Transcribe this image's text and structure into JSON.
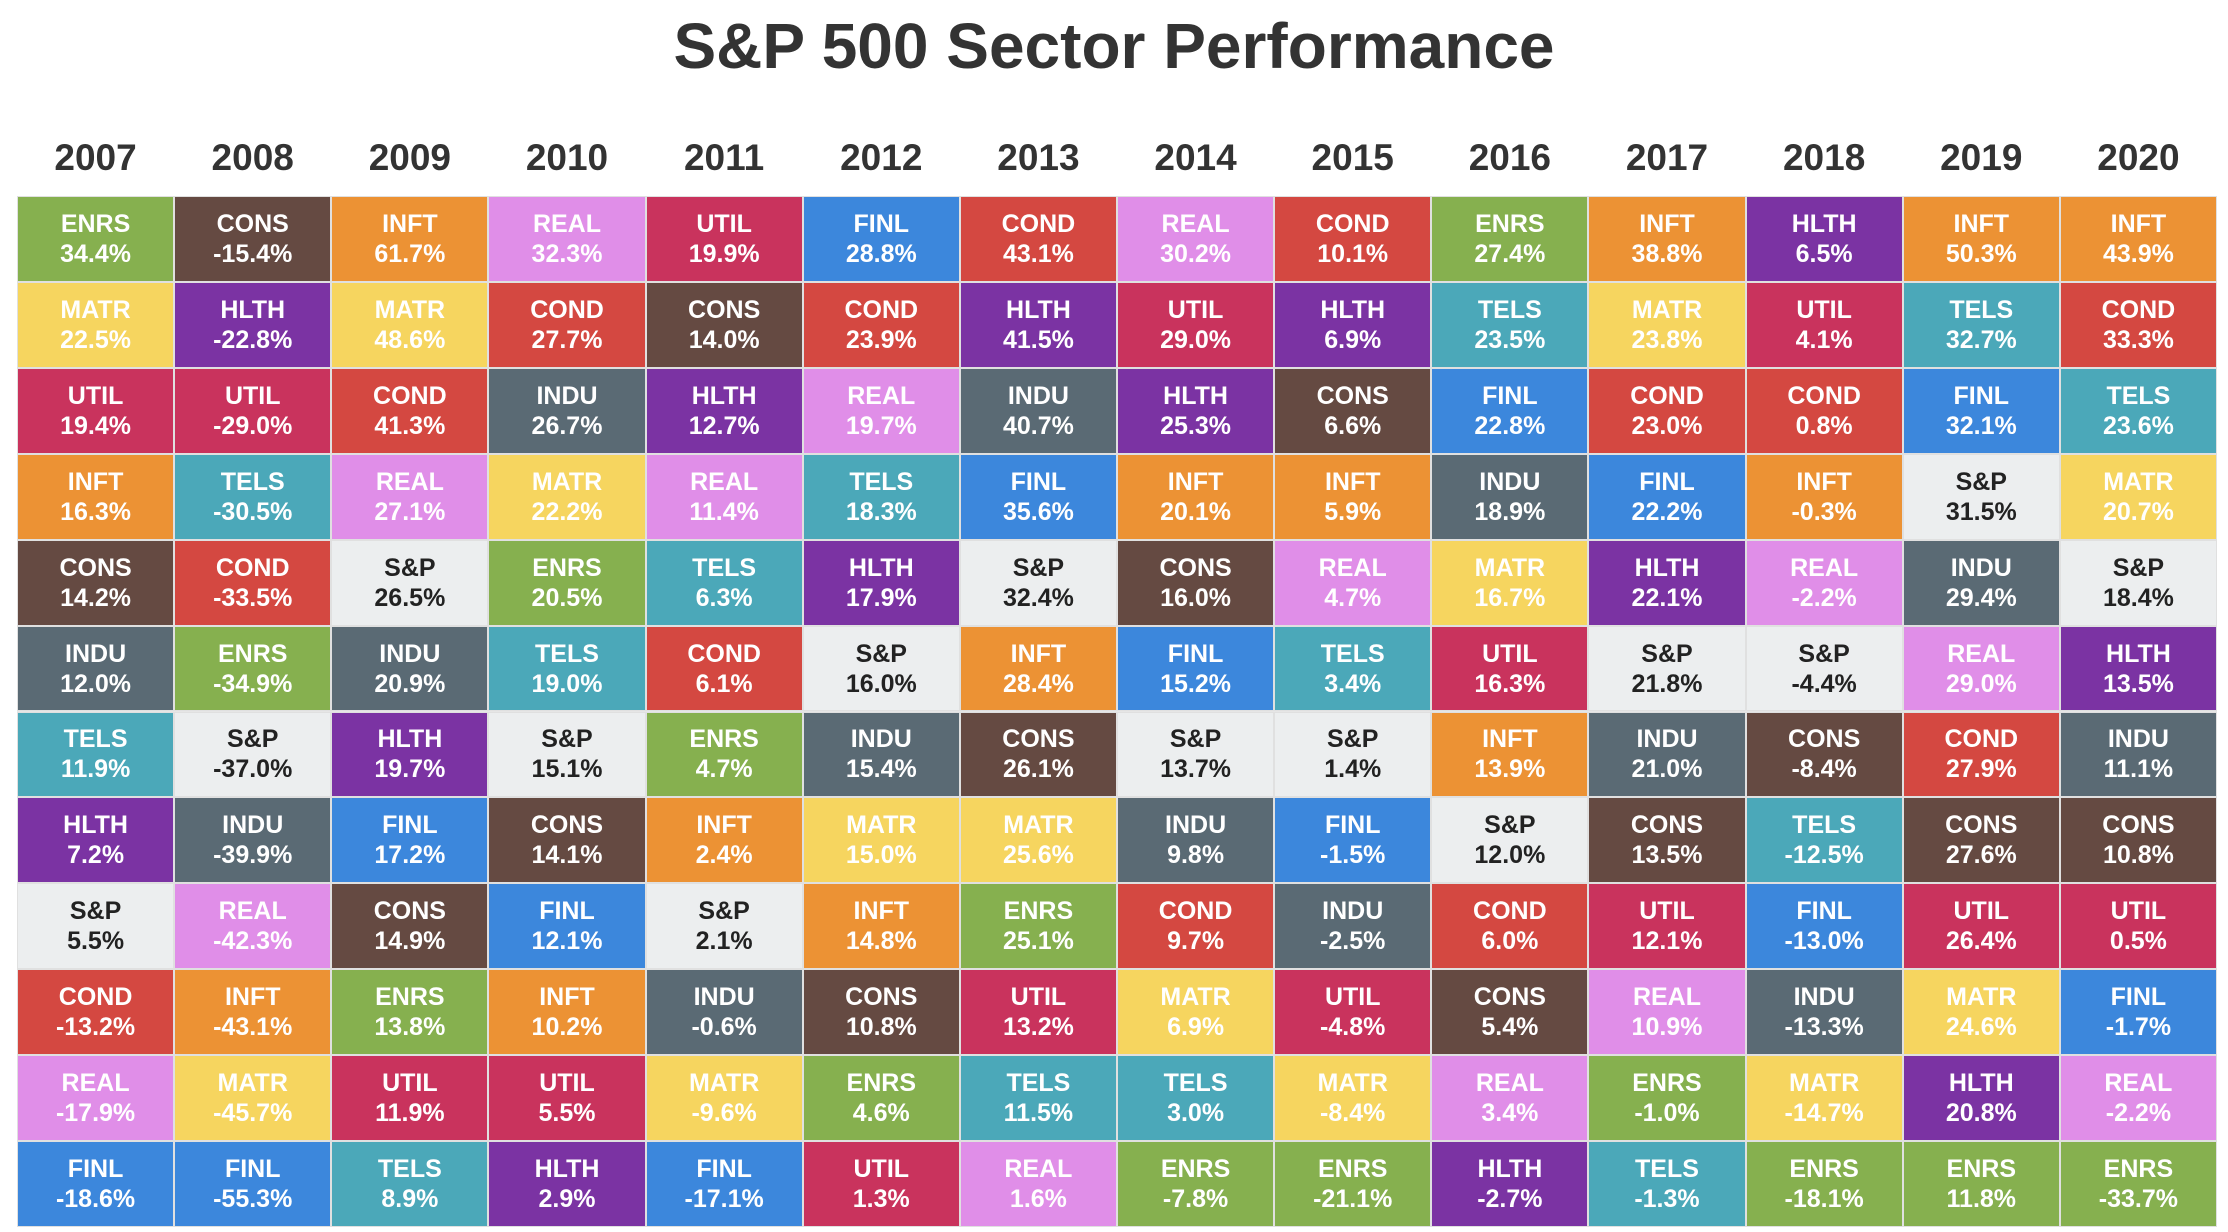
{
  "chart_data": {
    "type": "table",
    "title": "S&P 500 Sector Performance",
    "years": [
      "2007",
      "2008",
      "2009",
      "2010",
      "2011",
      "2012",
      "2013",
      "2014",
      "2015",
      "2016",
      "2017",
      "2018",
      "2019",
      "2020"
    ],
    "sector_colors": {
      "ENRS": "#86b04f",
      "CONS": "#654a42",
      "INFT": "#ec9234",
      "REAL": "#e08ee8",
      "UTIL": "#c9335d",
      "FINL": "#3c87dc",
      "COND": "#d44841",
      "HLTH": "#7b33a3",
      "MATR": "#f6d55f",
      "INDU": "#5a6a74",
      "TELS": "#4ba8b9",
      "S&P": "#eceeef"
    },
    "dark_text_sectors": [
      "S&P"
    ],
    "columns": [
      {
        "year": "2007",
        "cells": [
          {
            "s": "ENRS",
            "v": "34.4%"
          },
          {
            "s": "MATR",
            "v": "22.5%"
          },
          {
            "s": "UTIL",
            "v": "19.4%"
          },
          {
            "s": "INFT",
            "v": "16.3%"
          },
          {
            "s": "CONS",
            "v": "14.2%"
          },
          {
            "s": "INDU",
            "v": "12.0%"
          },
          {
            "s": "TELS",
            "v": "11.9%"
          },
          {
            "s": "HLTH",
            "v": "7.2%"
          },
          {
            "s": "S&P",
            "v": "5.5%"
          },
          {
            "s": "COND",
            "v": "-13.2%"
          },
          {
            "s": "REAL",
            "v": "-17.9%"
          },
          {
            "s": "FINL",
            "v": "-18.6%"
          }
        ]
      },
      {
        "year": "2008",
        "cells": [
          {
            "s": "CONS",
            "v": "-15.4%"
          },
          {
            "s": "HLTH",
            "v": "-22.8%"
          },
          {
            "s": "UTIL",
            "v": "-29.0%"
          },
          {
            "s": "TELS",
            "v": "-30.5%"
          },
          {
            "s": "COND",
            "v": "-33.5%"
          },
          {
            "s": "ENRS",
            "v": "-34.9%"
          },
          {
            "s": "S&P",
            "v": "-37.0%"
          },
          {
            "s": "INDU",
            "v": "-39.9%"
          },
          {
            "s": "REAL",
            "v": "-42.3%"
          },
          {
            "s": "INFT",
            "v": "-43.1%"
          },
          {
            "s": "MATR",
            "v": "-45.7%"
          },
          {
            "s": "FINL",
            "v": "-55.3%"
          }
        ]
      },
      {
        "year": "2009",
        "cells": [
          {
            "s": "INFT",
            "v": "61.7%"
          },
          {
            "s": "MATR",
            "v": "48.6%"
          },
          {
            "s": "COND",
            "v": "41.3%"
          },
          {
            "s": "REAL",
            "v": "27.1%"
          },
          {
            "s": "S&P",
            "v": "26.5%"
          },
          {
            "s": "INDU",
            "v": "20.9%"
          },
          {
            "s": "HLTH",
            "v": "19.7%"
          },
          {
            "s": "FINL",
            "v": "17.2%"
          },
          {
            "s": "CONS",
            "v": "14.9%"
          },
          {
            "s": "ENRS",
            "v": "13.8%"
          },
          {
            "s": "UTIL",
            "v": "11.9%"
          },
          {
            "s": "TELS",
            "v": "8.9%"
          }
        ]
      },
      {
        "year": "2010",
        "cells": [
          {
            "s": "REAL",
            "v": "32.3%"
          },
          {
            "s": "COND",
            "v": "27.7%"
          },
          {
            "s": "INDU",
            "v": "26.7%"
          },
          {
            "s": "MATR",
            "v": "22.2%"
          },
          {
            "s": "ENRS",
            "v": "20.5%"
          },
          {
            "s": "TELS",
            "v": "19.0%"
          },
          {
            "s": "S&P",
            "v": "15.1%"
          },
          {
            "s": "CONS",
            "v": "14.1%"
          },
          {
            "s": "FINL",
            "v": "12.1%"
          },
          {
            "s": "INFT",
            "v": "10.2%"
          },
          {
            "s": "UTIL",
            "v": "5.5%"
          },
          {
            "s": "HLTH",
            "v": "2.9%"
          }
        ]
      },
      {
        "year": "2011",
        "cells": [
          {
            "s": "UTIL",
            "v": "19.9%"
          },
          {
            "s": "CONS",
            "v": "14.0%"
          },
          {
            "s": "HLTH",
            "v": "12.7%"
          },
          {
            "s": "REAL",
            "v": "11.4%"
          },
          {
            "s": "TELS",
            "v": "6.3%"
          },
          {
            "s": "COND",
            "v": "6.1%"
          },
          {
            "s": "ENRS",
            "v": "4.7%"
          },
          {
            "s": "INFT",
            "v": "2.4%"
          },
          {
            "s": "S&P",
            "v": "2.1%"
          },
          {
            "s": "INDU",
            "v": "-0.6%"
          },
          {
            "s": "MATR",
            "v": "-9.6%"
          },
          {
            "s": "FINL",
            "v": "-17.1%"
          }
        ]
      },
      {
        "year": "2012",
        "cells": [
          {
            "s": "FINL",
            "v": "28.8%"
          },
          {
            "s": "COND",
            "v": "23.9%"
          },
          {
            "s": "REAL",
            "v": "19.7%"
          },
          {
            "s": "TELS",
            "v": "18.3%"
          },
          {
            "s": "HLTH",
            "v": "17.9%"
          },
          {
            "s": "S&P",
            "v": "16.0%"
          },
          {
            "s": "INDU",
            "v": "15.4%"
          },
          {
            "s": "MATR",
            "v": "15.0%"
          },
          {
            "s": "INFT",
            "v": "14.8%"
          },
          {
            "s": "CONS",
            "v": "10.8%"
          },
          {
            "s": "ENRS",
            "v": "4.6%"
          },
          {
            "s": "UTIL",
            "v": "1.3%"
          }
        ]
      },
      {
        "year": "2013",
        "cells": [
          {
            "s": "COND",
            "v": "43.1%"
          },
          {
            "s": "HLTH",
            "v": "41.5%"
          },
          {
            "s": "INDU",
            "v": "40.7%"
          },
          {
            "s": "FINL",
            "v": "35.6%"
          },
          {
            "s": "S&P",
            "v": "32.4%"
          },
          {
            "s": "INFT",
            "v": "28.4%"
          },
          {
            "s": "CONS",
            "v": "26.1%"
          },
          {
            "s": "MATR",
            "v": "25.6%"
          },
          {
            "s": "ENRS",
            "v": "25.1%"
          },
          {
            "s": "UTIL",
            "v": "13.2%"
          },
          {
            "s": "TELS",
            "v": "11.5%"
          },
          {
            "s": "REAL",
            "v": "1.6%"
          }
        ]
      },
      {
        "year": "2014",
        "cells": [
          {
            "s": "REAL",
            "v": "30.2%"
          },
          {
            "s": "UTIL",
            "v": "29.0%"
          },
          {
            "s": "HLTH",
            "v": "25.3%"
          },
          {
            "s": "INFT",
            "v": "20.1%"
          },
          {
            "s": "CONS",
            "v": "16.0%"
          },
          {
            "s": "FINL",
            "v": "15.2%"
          },
          {
            "s": "S&P",
            "v": "13.7%"
          },
          {
            "s": "INDU",
            "v": "9.8%"
          },
          {
            "s": "COND",
            "v": "9.7%"
          },
          {
            "s": "MATR",
            "v": "6.9%"
          },
          {
            "s": "TELS",
            "v": "3.0%"
          },
          {
            "s": "ENRS",
            "v": "-7.8%"
          }
        ]
      },
      {
        "year": "2015",
        "cells": [
          {
            "s": "COND",
            "v": "10.1%"
          },
          {
            "s": "HLTH",
            "v": "6.9%"
          },
          {
            "s": "CONS",
            "v": "6.6%"
          },
          {
            "s": "INFT",
            "v": "5.9%"
          },
          {
            "s": "REAL",
            "v": "4.7%"
          },
          {
            "s": "TELS",
            "v": "3.4%"
          },
          {
            "s": "S&P",
            "v": "1.4%"
          },
          {
            "s": "FINL",
            "v": "-1.5%"
          },
          {
            "s": "INDU",
            "v": "-2.5%"
          },
          {
            "s": "UTIL",
            "v": "-4.8%"
          },
          {
            "s": "MATR",
            "v": "-8.4%"
          },
          {
            "s": "ENRS",
            "v": "-21.1%"
          }
        ]
      },
      {
        "year": "2016",
        "cells": [
          {
            "s": "ENRS",
            "v": "27.4%"
          },
          {
            "s": "TELS",
            "v": "23.5%"
          },
          {
            "s": "FINL",
            "v": "22.8%"
          },
          {
            "s": "INDU",
            "v": "18.9%"
          },
          {
            "s": "MATR",
            "v": "16.7%"
          },
          {
            "s": "UTIL",
            "v": "16.3%"
          },
          {
            "s": "INFT",
            "v": "13.9%"
          },
          {
            "s": "S&P",
            "v": "12.0%"
          },
          {
            "s": "COND",
            "v": "6.0%"
          },
          {
            "s": "CONS",
            "v": "5.4%"
          },
          {
            "s": "REAL",
            "v": "3.4%"
          },
          {
            "s": "HLTH",
            "v": "-2.7%"
          }
        ]
      },
      {
        "year": "2017",
        "cells": [
          {
            "s": "INFT",
            "v": "38.8%"
          },
          {
            "s": "MATR",
            "v": "23.8%"
          },
          {
            "s": "COND",
            "v": "23.0%"
          },
          {
            "s": "FINL",
            "v": "22.2%"
          },
          {
            "s": "HLTH",
            "v": "22.1%"
          },
          {
            "s": "S&P",
            "v": "21.8%"
          },
          {
            "s": "INDU",
            "v": "21.0%"
          },
          {
            "s": "CONS",
            "v": "13.5%"
          },
          {
            "s": "UTIL",
            "v": "12.1%"
          },
          {
            "s": "REAL",
            "v": "10.9%"
          },
          {
            "s": "ENRS",
            "v": "-1.0%"
          },
          {
            "s": "TELS",
            "v": "-1.3%"
          }
        ]
      },
      {
        "year": "2018",
        "cells": [
          {
            "s": "HLTH",
            "v": "6.5%"
          },
          {
            "s": "UTIL",
            "v": "4.1%"
          },
          {
            "s": "COND",
            "v": "0.8%"
          },
          {
            "s": "INFT",
            "v": "-0.3%"
          },
          {
            "s": "REAL",
            "v": "-2.2%"
          },
          {
            "s": "S&P",
            "v": "-4.4%"
          },
          {
            "s": "CONS",
            "v": "-8.4%"
          },
          {
            "s": "TELS",
            "v": "-12.5%"
          },
          {
            "s": "FINL",
            "v": "-13.0%"
          },
          {
            "s": "INDU",
            "v": "-13.3%"
          },
          {
            "s": "MATR",
            "v": "-14.7%"
          },
          {
            "s": "ENRS",
            "v": "-18.1%"
          }
        ]
      },
      {
        "year": "2019",
        "cells": [
          {
            "s": "INFT",
            "v": "50.3%"
          },
          {
            "s": "TELS",
            "v": "32.7%"
          },
          {
            "s": "FINL",
            "v": "32.1%"
          },
          {
            "s": "S&P",
            "v": "31.5%"
          },
          {
            "s": "INDU",
            "v": "29.4%"
          },
          {
            "s": "REAL",
            "v": "29.0%"
          },
          {
            "s": "COND",
            "v": "27.9%"
          },
          {
            "s": "CONS",
            "v": "27.6%"
          },
          {
            "s": "UTIL",
            "v": "26.4%"
          },
          {
            "s": "MATR",
            "v": "24.6%"
          },
          {
            "s": "HLTH",
            "v": "20.8%"
          },
          {
            "s": "ENRS",
            "v": "11.8%"
          }
        ]
      },
      {
        "year": "2020",
        "cells": [
          {
            "s": "INFT",
            "v": "43.9%"
          },
          {
            "s": "COND",
            "v": "33.3%"
          },
          {
            "s": "TELS",
            "v": "23.6%"
          },
          {
            "s": "MATR",
            "v": "20.7%"
          },
          {
            "s": "S&P",
            "v": "18.4%"
          },
          {
            "s": "HLTH",
            "v": "13.5%"
          },
          {
            "s": "INDU",
            "v": "11.1%"
          },
          {
            "s": "CONS",
            "v": "10.8%"
          },
          {
            "s": "UTIL",
            "v": "0.5%"
          },
          {
            "s": "FINL",
            "v": "-1.7%"
          },
          {
            "s": "REAL",
            "v": "-2.2%"
          },
          {
            "s": "ENRS",
            "v": "-33.7%"
          }
        ]
      }
    ]
  }
}
